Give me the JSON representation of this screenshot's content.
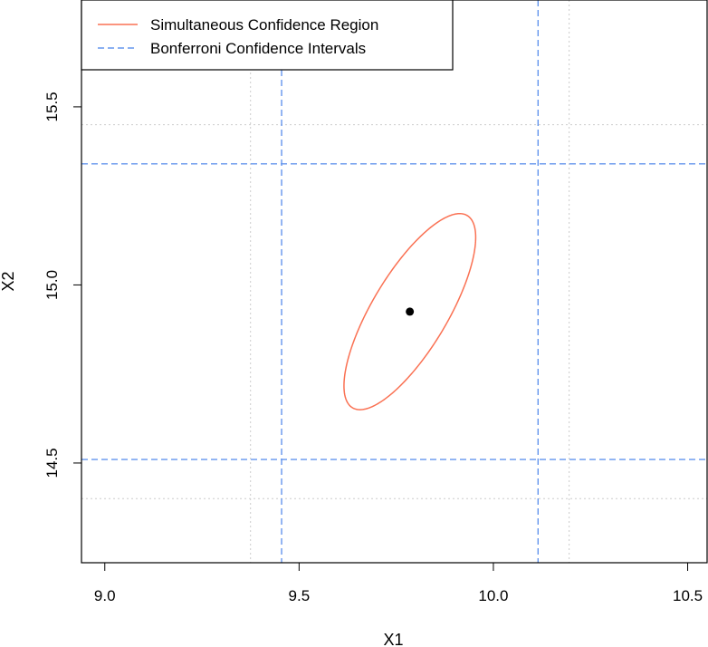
{
  "chart_data": {
    "type": "scatter",
    "title": "",
    "xlabel": "X1",
    "ylabel": "X2",
    "xlim": [
      8.94,
      10.55
    ],
    "ylim": [
      14.22,
      15.8
    ],
    "xticks": [
      {
        "value": 9.0,
        "label": "9.0"
      },
      {
        "value": 9.5,
        "label": "9.5"
      },
      {
        "value": 10.0,
        "label": "10.0"
      },
      {
        "value": 10.5,
        "label": "10.5"
      }
    ],
    "yticks": [
      {
        "value": 14.5,
        "label": "14.5"
      },
      {
        "value": 15.0,
        "label": "15.0"
      },
      {
        "value": 15.5,
        "label": "15.5"
      }
    ],
    "center": {
      "x": 9.785,
      "y": 14.925
    },
    "ellipse": {
      "name": "Simultaneous Confidence Region",
      "color": "#FA7153",
      "var_x": 0.02873,
      "var_y": 0.07577,
      "covariance": 0.03532
    },
    "bonferroni": {
      "name": "Bonferroni Confidence Intervals",
      "color": "#6495ED",
      "x_interval": [
        9.455,
        10.115
      ],
      "y_interval": [
        14.51,
        15.34
      ]
    },
    "grid_x": [
      9.375,
      10.195
    ],
    "grid_y": [
      14.4,
      15.45
    ],
    "grid_color": "#cccccc",
    "legend": {
      "position": "top-left",
      "entries": [
        {
          "label": "Simultaneous Confidence Region",
          "color": "#FA7153",
          "style": "solid"
        },
        {
          "label": "Bonferroni Confidence Intervals",
          "color": "#6495ED",
          "style": "dashed"
        }
      ]
    }
  }
}
